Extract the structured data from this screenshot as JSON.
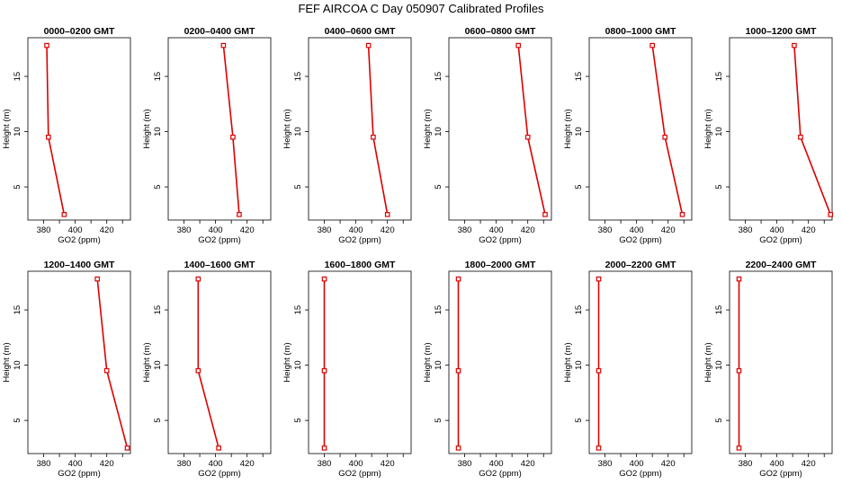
{
  "title": "FEF AIRCOA C  Day 050907  Calibrated Profiles",
  "line_color": "#dd0000",
  "chart_data": [
    {
      "type": "line",
      "title": "0000–0200 GMT",
      "xlabel": "GO2 (ppm)",
      "ylabel": "Height (m)",
      "xlim": [
        370,
        435
      ],
      "ylim": [
        2,
        18.5
      ],
      "xticks": [
        "380",
        "400",
        "420"
      ],
      "yticks": [
        "5",
        "10",
        "15"
      ],
      "series": [
        {
          "values": [
            {
              "x": 393,
              "y": 2.5
            },
            {
              "x": 383,
              "y": 9.5
            },
            {
              "x": 382,
              "y": 17.8
            }
          ]
        }
      ]
    },
    {
      "type": "line",
      "title": "0200–0400 GMT",
      "xlabel": "GO2 (ppm)",
      "ylabel": "Height (m)",
      "xlim": [
        370,
        435
      ],
      "ylim": [
        2,
        18.5
      ],
      "xticks": [
        "380",
        "400",
        "420"
      ],
      "yticks": [
        "5",
        "10",
        "15"
      ],
      "series": [
        {
          "values": [
            {
              "x": 415,
              "y": 2.5
            },
            {
              "x": 411,
              "y": 9.5
            },
            {
              "x": 405,
              "y": 17.8
            }
          ]
        }
      ]
    },
    {
      "type": "line",
      "title": "0400–0600 GMT",
      "xlabel": "GO2 (ppm)",
      "ylabel": "Height (m)",
      "xlim": [
        370,
        435
      ],
      "ylim": [
        2,
        18.5
      ],
      "xticks": [
        "380",
        "400",
        "420"
      ],
      "yticks": [
        "5",
        "10",
        "15"
      ],
      "series": [
        {
          "values": [
            {
              "x": 420,
              "y": 2.5
            },
            {
              "x": 411,
              "y": 9.5
            },
            {
              "x": 408,
              "y": 17.8
            }
          ]
        }
      ]
    },
    {
      "type": "line",
      "title": "0600–0800 GMT",
      "xlabel": "GO2 (ppm)",
      "ylabel": "Height (m)",
      "xlim": [
        370,
        435
      ],
      "ylim": [
        2,
        18.5
      ],
      "xticks": [
        "380",
        "400",
        "420"
      ],
      "yticks": [
        "5",
        "10",
        "15"
      ],
      "series": [
        {
          "values": [
            {
              "x": 431,
              "y": 2.5
            },
            {
              "x": 420,
              "y": 9.5
            },
            {
              "x": 414,
              "y": 17.8
            }
          ]
        }
      ]
    },
    {
      "type": "line",
      "title": "0800–1000 GMT",
      "xlabel": "GO2 (ppm)",
      "ylabel": "Height (m)",
      "xlim": [
        370,
        435
      ],
      "ylim": [
        2,
        18.5
      ],
      "xticks": [
        "380",
        "400",
        "420"
      ],
      "yticks": [
        "5",
        "10",
        "15"
      ],
      "series": [
        {
          "values": [
            {
              "x": 429,
              "y": 2.5
            },
            {
              "x": 418,
              "y": 9.5
            },
            {
              "x": 410,
              "y": 17.8
            }
          ]
        }
      ]
    },
    {
      "type": "line",
      "title": "1000–1200 GMT",
      "xlabel": "GO2 (ppm)",
      "ylabel": "Height (m)",
      "xlim": [
        370,
        435
      ],
      "ylim": [
        2,
        18.5
      ],
      "xticks": [
        "380",
        "400",
        "420"
      ],
      "yticks": [
        "5",
        "10",
        "15"
      ],
      "series": [
        {
          "values": [
            {
              "x": 434,
              "y": 2.5
            },
            {
              "x": 415,
              "y": 9.5
            },
            {
              "x": 411,
              "y": 17.8
            }
          ]
        }
      ]
    },
    {
      "type": "line",
      "title": "1200–1400 GMT",
      "xlabel": "GO2 (ppm)",
      "ylabel": "Height (m)",
      "xlim": [
        370,
        435
      ],
      "ylim": [
        2,
        18.5
      ],
      "xticks": [
        "380",
        "400",
        "420"
      ],
      "yticks": [
        "5",
        "10",
        "15"
      ],
      "series": [
        {
          "values": [
            {
              "x": 433,
              "y": 2.5
            },
            {
              "x": 420,
              "y": 9.5
            },
            {
              "x": 414,
              "y": 17.8
            }
          ]
        }
      ]
    },
    {
      "type": "line",
      "title": "1400–1600 GMT",
      "xlabel": "GO2 (ppm)",
      "ylabel": "Height (m)",
      "xlim": [
        370,
        435
      ],
      "ylim": [
        2,
        18.5
      ],
      "xticks": [
        "380",
        "400",
        "420"
      ],
      "yticks": [
        "5",
        "10",
        "15"
      ],
      "series": [
        {
          "values": [
            {
              "x": 402,
              "y": 2.5
            },
            {
              "x": 389,
              "y": 9.5
            },
            {
              "x": 389,
              "y": 17.8
            }
          ]
        }
      ]
    },
    {
      "type": "line",
      "title": "1600–1800 GMT",
      "xlabel": "GO2 (ppm)",
      "ylabel": "Height (m)",
      "xlim": [
        370,
        435
      ],
      "ylim": [
        2,
        18.5
      ],
      "xticks": [
        "380",
        "400",
        "420"
      ],
      "yticks": [
        "5",
        "10",
        "15"
      ],
      "series": [
        {
          "values": [
            {
              "x": 380,
              "y": 2.5
            },
            {
              "x": 380,
              "y": 9.5
            },
            {
              "x": 380,
              "y": 17.8
            }
          ]
        }
      ]
    },
    {
      "type": "line",
      "title": "1800–2000 GMT",
      "xlabel": "GO2 (ppm)",
      "ylabel": "Height (m)",
      "xlim": [
        370,
        435
      ],
      "ylim": [
        2,
        18.5
      ],
      "xticks": [
        "380",
        "400",
        "420"
      ],
      "yticks": [
        "5",
        "10",
        "15"
      ],
      "series": [
        {
          "values": [
            {
              "x": 376,
              "y": 2.5
            },
            {
              "x": 376,
              "y": 9.5
            },
            {
              "x": 376,
              "y": 17.8
            }
          ]
        }
      ]
    },
    {
      "type": "line",
      "title": "2000–2200 GMT",
      "xlabel": "GO2 (ppm)",
      "ylabel": "Height (m)",
      "xlim": [
        370,
        435
      ],
      "ylim": [
        2,
        18.5
      ],
      "xticks": [
        "380",
        "400",
        "420"
      ],
      "yticks": [
        "5",
        "10",
        "15"
      ],
      "series": [
        {
          "values": [
            {
              "x": 376,
              "y": 2.5
            },
            {
              "x": 376,
              "y": 9.5
            },
            {
              "x": 376,
              "y": 17.8
            }
          ]
        }
      ]
    },
    {
      "type": "line",
      "title": "2200–2400 GMT",
      "xlabel": "GO2 (ppm)",
      "ylabel": "Height (m)",
      "xlim": [
        370,
        435
      ],
      "ylim": [
        2,
        18.5
      ],
      "xticks": [
        "380",
        "400",
        "420"
      ],
      "yticks": [
        "5",
        "10",
        "15"
      ],
      "series": [
        {
          "values": [
            {
              "x": 376,
              "y": 2.5
            },
            {
              "x": 376,
              "y": 9.5
            },
            {
              "x": 376,
              "y": 17.8
            }
          ]
        }
      ]
    }
  ]
}
